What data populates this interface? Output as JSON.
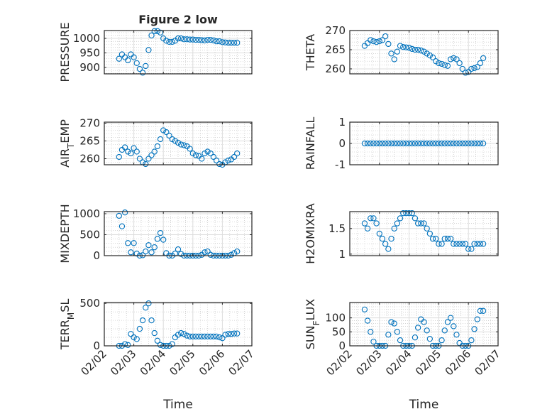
{
  "chart_data": [
    {
      "type": "scatter",
      "title": "Figure 2 low",
      "ylabel": "PRESSURE",
      "ylim": [
        878,
        1027
      ],
      "yticks": [
        900,
        950,
        1000
      ],
      "x": [
        0.5,
        0.6,
        0.7,
        0.8,
        0.9,
        1.0,
        1.1,
        1.2,
        1.3,
        1.4,
        1.5,
        1.6,
        1.7,
        1.8,
        1.9,
        2.0,
        2.1,
        2.2,
        2.3,
        2.4,
        2.5,
        2.6,
        2.7,
        2.8,
        2.9,
        3.0,
        3.1,
        3.2,
        3.3,
        3.4,
        3.5,
        3.6,
        3.7,
        3.8,
        3.9,
        4.0,
        4.1,
        4.2,
        4.3,
        4.4,
        4.5
      ],
      "y": [
        930,
        945,
        935,
        925,
        945,
        935,
        915,
        895,
        882,
        905,
        960,
        1010,
        1025,
        1025,
        1020,
        1000,
        992,
        988,
        988,
        992,
        1000,
        1000,
        997,
        997,
        996,
        996,
        995,
        995,
        994,
        993,
        995,
        995,
        993,
        990,
        990,
        987,
        986,
        985,
        985,
        985,
        985
      ]
    },
    {
      "type": "scatter",
      "ylabel": "THETA",
      "ylim": [
        258.7,
        270
      ],
      "yticks": [
        260,
        265,
        270
      ],
      "x": [
        0.5,
        0.6,
        0.7,
        0.8,
        0.9,
        1.0,
        1.1,
        1.2,
        1.3,
        1.4,
        1.5,
        1.6,
        1.7,
        1.8,
        1.9,
        2.0,
        2.1,
        2.2,
        2.3,
        2.4,
        2.5,
        2.6,
        2.7,
        2.8,
        2.9,
        3.0,
        3.1,
        3.2,
        3.3,
        3.4,
        3.5,
        3.6,
        3.7,
        3.8,
        3.9,
        4.0,
        4.1,
        4.2,
        4.3,
        4.4,
        4.5
      ],
      "y": [
        266,
        266.7,
        267.5,
        267.2,
        267,
        267.2,
        267.5,
        268.5,
        266.5,
        264,
        262.5,
        264.5,
        266,
        265.7,
        265.6,
        265.5,
        265.2,
        265,
        265,
        264.8,
        264.5,
        264,
        263.5,
        263,
        262,
        261.5,
        261.3,
        261,
        260.8,
        262.5,
        262.8,
        262.5,
        261.5,
        260,
        259,
        259.2,
        260,
        260.2,
        260.5,
        261.5,
        262.8
      ]
    },
    {
      "type": "scatter",
      "ylabel": "AIR_TEMP",
      "ylim": [
        258.3,
        270.3
      ],
      "yticks": [
        260,
        265,
        270
      ],
      "x": [
        0.5,
        0.6,
        0.7,
        0.8,
        0.9,
        1.0,
        1.1,
        1.2,
        1.3,
        1.4,
        1.5,
        1.6,
        1.7,
        1.8,
        1.9,
        2.0,
        2.1,
        2.2,
        2.3,
        2.4,
        2.5,
        2.6,
        2.7,
        2.8,
        2.9,
        3.0,
        3.1,
        3.2,
        3.3,
        3.4,
        3.5,
        3.6,
        3.7,
        3.8,
        3.9,
        4.0,
        4.1,
        4.2,
        4.3,
        4.4,
        4.5
      ],
      "y": [
        260.5,
        262.5,
        263.2,
        262,
        261.5,
        263,
        262,
        260,
        259,
        258.5,
        260,
        261,
        262,
        263.5,
        265.5,
        268,
        267.5,
        266.5,
        265.5,
        265,
        264.5,
        264,
        263.8,
        263.5,
        262.8,
        261.5,
        261,
        260.8,
        260,
        261.5,
        262,
        261.5,
        260.5,
        259.5,
        258.5,
        258.3,
        259,
        259.5,
        259.8,
        260.5,
        261.5
      ]
    },
    {
      "type": "scatter",
      "ylabel": "RAINFALL",
      "ylim": [
        -1,
        1
      ],
      "yticks": [
        -1,
        0,
        1
      ],
      "x": [
        0.5,
        0.6,
        0.7,
        0.8,
        0.9,
        1.0,
        1.1,
        1.2,
        1.3,
        1.4,
        1.5,
        1.6,
        1.7,
        1.8,
        1.9,
        2.0,
        2.1,
        2.2,
        2.3,
        2.4,
        2.5,
        2.6,
        2.7,
        2.8,
        2.9,
        3.0,
        3.1,
        3.2,
        3.3,
        3.4,
        3.5,
        3.6,
        3.7,
        3.8,
        3.9,
        4.0,
        4.1,
        4.2,
        4.3,
        4.4,
        4.5
      ],
      "y": [
        0,
        0,
        0,
        0,
        0,
        0,
        0,
        0,
        0,
        0,
        0,
        0,
        0,
        0,
        0,
        0,
        0,
        0,
        0,
        0,
        0,
        0,
        0,
        0,
        0,
        0,
        0,
        0,
        0,
        0,
        0,
        0,
        0,
        0,
        0,
        0,
        0,
        0,
        0,
        0,
        0
      ]
    },
    {
      "type": "scatter",
      "ylabel": "MIXDEPTH",
      "ylim": [
        0,
        1050
      ],
      "yticks": [
        0,
        500,
        1000
      ],
      "x": [
        0.5,
        0.6,
        0.7,
        0.8,
        0.9,
        1.0,
        1.1,
        1.2,
        1.3,
        1.4,
        1.5,
        1.6,
        1.7,
        1.8,
        1.9,
        2.0,
        2.1,
        2.2,
        2.3,
        2.4,
        2.5,
        2.6,
        2.7,
        2.8,
        2.9,
        3.0,
        3.1,
        3.2,
        3.3,
        3.4,
        3.5,
        3.6,
        3.7,
        3.8,
        3.9,
        4.0,
        4.1,
        4.2,
        4.3,
        4.4,
        4.5
      ],
      "y": [
        950,
        700,
        1030,
        300,
        80,
        300,
        50,
        0,
        10,
        100,
        250,
        80,
        200,
        400,
        540,
        380,
        60,
        0,
        0,
        50,
        150,
        40,
        0,
        0,
        0,
        0,
        0,
        0,
        20,
        80,
        100,
        20,
        0,
        0,
        0,
        0,
        0,
        0,
        20,
        60,
        100
      ]
    },
    {
      "type": "scatter",
      "ylabel": "H2OMIXRA",
      "ylim": [
        0.97,
        1.83
      ],
      "yticks": [
        1,
        1.5
      ],
      "x": [
        0.5,
        0.6,
        0.7,
        0.8,
        0.9,
        1.0,
        1.1,
        1.2,
        1.3,
        1.4,
        1.5,
        1.6,
        1.7,
        1.8,
        1.9,
        2.0,
        2.1,
        2.2,
        2.3,
        2.4,
        2.5,
        2.6,
        2.7,
        2.8,
        2.9,
        3.0,
        3.1,
        3.2,
        3.3,
        3.4,
        3.5,
        3.6,
        3.7,
        3.8,
        3.9,
        4.0,
        4.1,
        4.2,
        4.3,
        4.4,
        4.5
      ],
      "y": [
        1.6,
        1.5,
        1.7,
        1.7,
        1.6,
        1.4,
        1.3,
        1.2,
        1.1,
        1.3,
        1.5,
        1.6,
        1.7,
        1.8,
        1.8,
        1.8,
        1.8,
        1.7,
        1.6,
        1.6,
        1.6,
        1.5,
        1.4,
        1.3,
        1.3,
        1.2,
        1.2,
        1.3,
        1.3,
        1.3,
        1.2,
        1.2,
        1.2,
        1.2,
        1.2,
        1.1,
        1.1,
        1.2,
        1.2,
        1.2,
        1.2
      ]
    },
    {
      "type": "scatter",
      "ylabel": "TERR_MSL",
      "ylim": [
        0,
        510
      ],
      "yticks": [
        0,
        500
      ],
      "xlabel": "Time",
      "x": [
        0.5,
        0.6,
        0.7,
        0.8,
        0.9,
        1.0,
        1.1,
        1.2,
        1.3,
        1.4,
        1.5,
        1.6,
        1.7,
        1.8,
        1.9,
        2.0,
        2.1,
        2.2,
        2.3,
        2.4,
        2.5,
        2.6,
        2.7,
        2.8,
        2.9,
        3.0,
        3.1,
        3.2,
        3.3,
        3.4,
        3.5,
        3.6,
        3.7,
        3.8,
        3.9,
        4.0,
        4.1,
        4.2,
        4.3,
        4.4,
        4.5
      ],
      "y": [
        0,
        0,
        20,
        10,
        140,
        100,
        80,
        200,
        300,
        450,
        500,
        300,
        150,
        60,
        10,
        0,
        0,
        0,
        20,
        100,
        130,
        150,
        140,
        120,
        110,
        110,
        110,
        110,
        110,
        110,
        110,
        110,
        110,
        110,
        100,
        90,
        130,
        140,
        140,
        145,
        145
      ]
    },
    {
      "type": "scatter",
      "ylabel": "SUN_FLUX",
      "ylim": [
        0,
        155
      ],
      "yticks": [
        0,
        50,
        100
      ],
      "xlabel": "Time",
      "x": [
        0.5,
        0.6,
        0.7,
        0.8,
        0.9,
        1.0,
        1.1,
        1.2,
        1.3,
        1.4,
        1.5,
        1.6,
        1.7,
        1.8,
        1.9,
        2.0,
        2.1,
        2.2,
        2.3,
        2.4,
        2.5,
        2.6,
        2.7,
        2.8,
        2.9,
        3.0,
        3.1,
        3.2,
        3.3,
        3.4,
        3.5,
        3.6,
        3.7,
        3.8,
        3.9,
        4.0,
        4.1,
        4.2,
        4.3,
        4.4,
        4.5
      ],
      "y": [
        130,
        90,
        50,
        15,
        0,
        0,
        0,
        0,
        40,
        85,
        80,
        50,
        20,
        0,
        0,
        0,
        0,
        30,
        65,
        95,
        85,
        55,
        25,
        0,
        0,
        0,
        20,
        55,
        85,
        100,
        70,
        40,
        10,
        0,
        0,
        0,
        20,
        60,
        95,
        125,
        125
      ]
    }
  ],
  "xaxis": {
    "xlim_days": [
      0,
      5
    ],
    "tick_labels": [
      "02/02",
      "02/03",
      "02/04",
      "02/05",
      "02/06",
      "02/07"
    ]
  },
  "colors": {
    "marker": "#0072BD",
    "axis": "#262626",
    "grid": "#dcdcdc"
  }
}
